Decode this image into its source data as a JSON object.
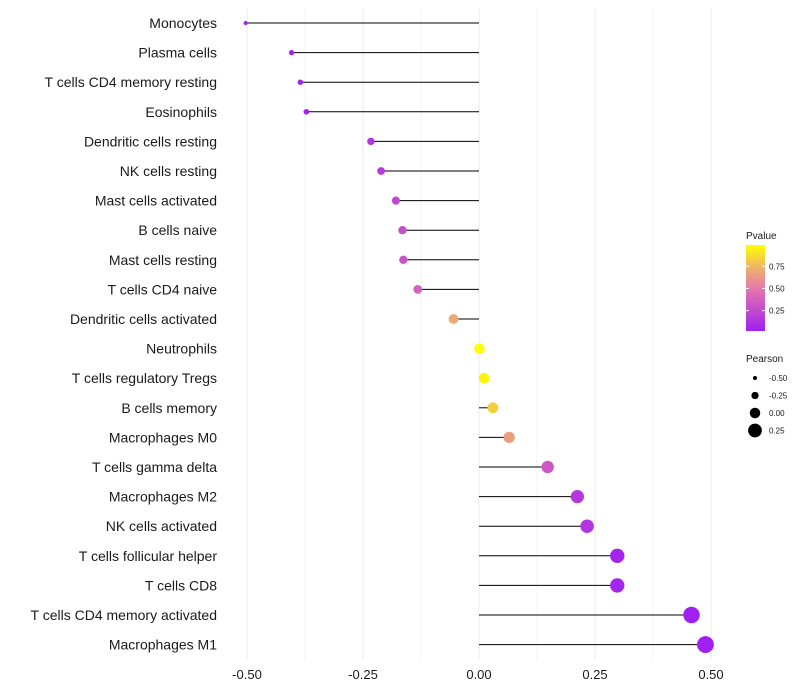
{
  "chart_data": {
    "type": "lollipop",
    "title": "",
    "xlabel": "",
    "ylabel": "",
    "xlim": [
      -0.52,
      0.52
    ],
    "x_ticks": [
      -0.5,
      -0.25,
      0,
      0.25,
      0.5
    ],
    "x_tick_labels": [
      "-0.50",
      "-0.25",
      "0.00",
      "0.25",
      "0.50"
    ],
    "grid": true,
    "baseline": 0,
    "categories": [
      "Monocytes",
      "Plasma cells",
      "T cells CD4 memory resting",
      "Eosinophils",
      "Dendritic cells resting",
      "NK cells resting",
      "Mast cells activated",
      "B cells naive",
      "Mast cells resting",
      "T cells CD4 naive",
      "Dendritic cells activated",
      "Neutrophils",
      "T cells regulatory  Tregs ",
      "B cells memory",
      "Macrophages M0",
      "T cells gamma delta",
      "Macrophages M2",
      "NK cells activated",
      "T cells follicular helper",
      "T cells CD8",
      "T cells CD4 memory activated",
      "Macrophages M1"
    ],
    "pearson": [
      -0.503,
      -0.404,
      -0.385,
      -0.372,
      -0.233,
      -0.211,
      -0.179,
      -0.165,
      -0.163,
      -0.132,
      -0.055,
      0.001,
      0.011,
      0.03,
      0.065,
      0.148,
      0.212,
      0.233,
      0.298,
      0.298,
      0.458,
      0.488
    ],
    "pvalue": [
      0.02,
      0.03,
      0.04,
      0.05,
      0.14,
      0.17,
      0.24,
      0.28,
      0.3,
      0.38,
      0.7,
      0.99,
      0.96,
      0.83,
      0.66,
      0.33,
      0.16,
      0.14,
      0.05,
      0.05,
      0.02,
      0.02
    ],
    "legend_color": {
      "title": "Pvalue",
      "ticks": [
        0.25,
        0.5,
        0.75
      ],
      "tick_labels": [
        "0.25",
        "0.50",
        "0.75"
      ],
      "range": [
        0.02,
        0.99
      ],
      "colors": [
        "#a020f0",
        "#f5e214",
        "#ffff00"
      ]
    },
    "legend_size": {
      "title": "Pearson",
      "values": [
        -0.5,
        -0.25,
        0,
        0.25
      ],
      "labels": [
        "-0.50",
        "-0.25",
        "0.00",
        "0.25"
      ]
    },
    "legend_position": "right",
    "colors": {
      "segment": "#000000",
      "grid": "#ebebeb"
    }
  }
}
